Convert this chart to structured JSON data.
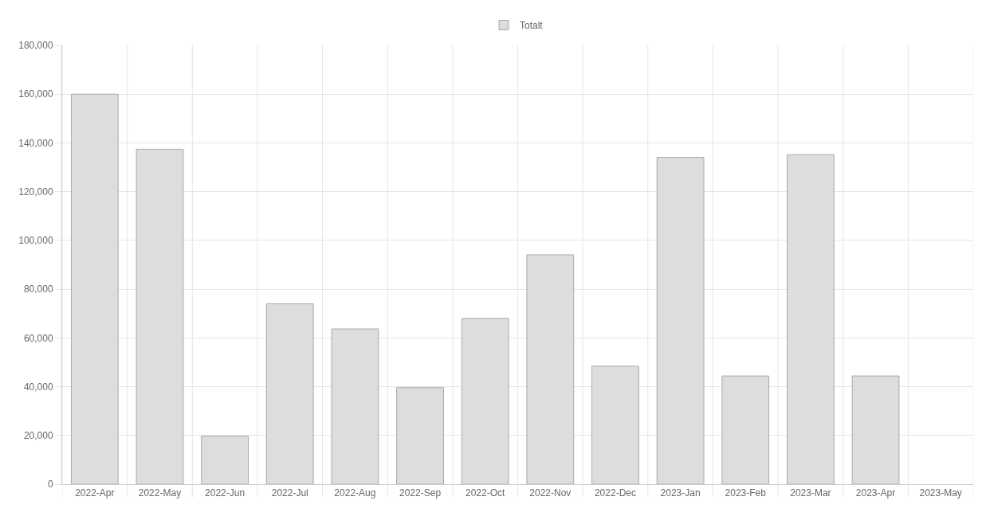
{
  "chart_data": {
    "type": "bar",
    "categories": [
      "2022-Apr",
      "2022-May",
      "2022-Jun",
      "2022-Jul",
      "2022-Aug",
      "2022-Sep",
      "2022-Oct",
      "2022-Nov",
      "2022-Dec",
      "2023-Jan",
      "2023-Feb",
      "2023-Mar",
      "2023-Apr",
      "2023-May"
    ],
    "series": [
      {
        "name": "Totalt",
        "color": "#dddddd",
        "values": [
          160000,
          137400,
          19700,
          74000,
          63700,
          39600,
          68000,
          94100,
          48400,
          134100,
          44400,
          135200,
          44400,
          null
        ]
      }
    ],
    "ylim": [
      0,
      180000
    ],
    "yticks": [
      {
        "value": 0,
        "label": "0"
      },
      {
        "value": 20000,
        "label": "20,000"
      },
      {
        "value": 40000,
        "label": "40,000"
      },
      {
        "value": 60000,
        "label": "60,000"
      },
      {
        "value": 80000,
        "label": "80,000"
      },
      {
        "value": 100000,
        "label": "100,000"
      },
      {
        "value": 120000,
        "label": "120,000"
      },
      {
        "value": 140000,
        "label": "140,000"
      },
      {
        "value": 160000,
        "label": "160,000"
      },
      {
        "value": 180000,
        "label": "180,000"
      }
    ],
    "grid": true,
    "legend": "top"
  }
}
